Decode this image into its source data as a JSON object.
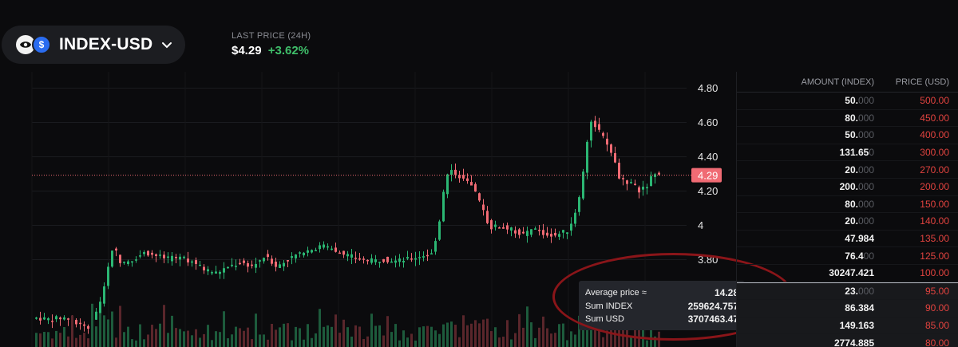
{
  "header": {
    "pair": "INDEX-USD",
    "last_price_label": "LAST PRICE (24H)",
    "last_price": "$4.29",
    "change": "+3.62%"
  },
  "chart": {
    "price_axis": [
      "4.80",
      "4.60",
      "4.40",
      "4.20",
      "4",
      "3.80"
    ],
    "current_price_label": "4.29",
    "current_price": 4.29,
    "colors": {
      "up": "#2bb673",
      "down": "#f06b74",
      "volume_up": "#1d5b3c",
      "volume_down": "#5a262b",
      "current": "#f06b74"
    }
  },
  "tooltip": {
    "rows": [
      {
        "label": "Average price ≈",
        "value": "14.28"
      },
      {
        "label": "Sum INDEX",
        "value": "259624.757"
      },
      {
        "label": "Sum USD",
        "value": "3707463.47"
      }
    ]
  },
  "orderbook": {
    "amount_header": "AMOUNT (INDEX)",
    "price_header": "PRICE (USD)",
    "asks": [
      {
        "amount": "50.",
        "amount_dim": "000",
        "price": "500.00"
      },
      {
        "amount": "80.",
        "amount_dim": "000",
        "price": "450.00"
      },
      {
        "amount": "50.",
        "amount_dim": "000",
        "price": "400.00"
      },
      {
        "amount": "131.65",
        "amount_dim": "0",
        "price": "300.00"
      },
      {
        "amount": "20.",
        "amount_dim": "000",
        "price": "270.00"
      },
      {
        "amount": "200.",
        "amount_dim": "000",
        "price": "200.00"
      },
      {
        "amount": "80.",
        "amount_dim": "000",
        "price": "150.00"
      },
      {
        "amount": "20.",
        "amount_dim": "000",
        "price": "140.00"
      },
      {
        "amount": "47.984",
        "amount_dim": "",
        "price": "135.00"
      },
      {
        "amount": "76.4",
        "amount_dim": "00",
        "price": "125.00"
      },
      {
        "amount": "30247.421",
        "amount_dim": "",
        "price": "100.00"
      }
    ],
    "below": [
      {
        "amount": "23.",
        "amount_dim": "000",
        "price": "95.00"
      },
      {
        "amount": "86.384",
        "amount_dim": "",
        "price": "90.00"
      },
      {
        "amount": "149.163",
        "amount_dim": "",
        "price": "85.00"
      },
      {
        "amount": "2774.885",
        "amount_dim": "",
        "price": "80.00"
      }
    ]
  }
}
